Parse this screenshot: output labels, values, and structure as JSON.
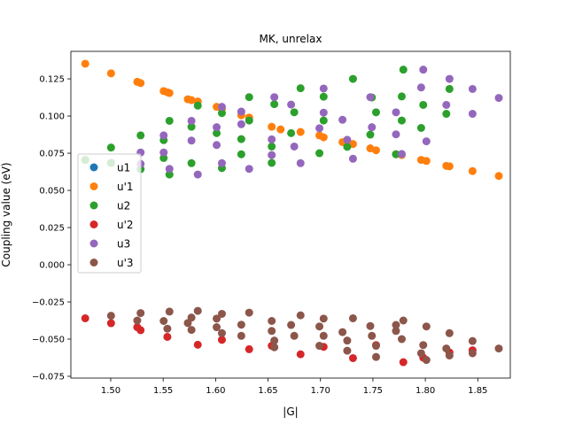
{
  "chart_data": {
    "type": "scatter",
    "title": "MK, unrelax",
    "xlabel": "|G|",
    "ylabel": "Coupling value (eV)",
    "xlim": [
      1.462,
      1.881
    ],
    "ylim": [
      -0.0762,
      0.1435
    ],
    "x_ticks": [
      "1.50",
      "1.55",
      "1.60",
      "1.65",
      "1.70",
      "1.75",
      "1.80",
      "1.85"
    ],
    "x_tick_values": [
      1.5,
      1.55,
      1.6,
      1.65,
      1.7,
      1.75,
      1.8,
      1.85
    ],
    "y_ticks": [
      "−0.075",
      "−0.050",
      "−0.025",
      "0.000",
      "0.025",
      "0.050",
      "0.075",
      "0.100",
      "0.125"
    ],
    "y_tick_values": [
      -0.075,
      -0.05,
      -0.025,
      0.0,
      0.025,
      0.05,
      0.075,
      0.1,
      0.125
    ],
    "grid": false,
    "legend_position": "center-left",
    "series": [
      {
        "name": "u1",
        "color": "#1f77b4",
        "points": [
          [
            1.4757,
            0.0705
          ],
          [
            1.5003,
            0.0685
          ]
        ]
      },
      {
        "name": "u'1",
        "color": "#ff7f0e",
        "points": [
          [
            1.4757,
            0.1352
          ],
          [
            1.5003,
            0.1287
          ],
          [
            1.5253,
            0.123
          ],
          [
            1.5285,
            0.1222
          ],
          [
            1.5505,
            0.1168
          ],
          [
            1.554,
            0.116
          ],
          [
            1.556,
            0.1155
          ],
          [
            1.5735,
            0.1113
          ],
          [
            1.577,
            0.1107
          ],
          [
            1.583,
            0.1098
          ],
          [
            1.601,
            0.1062
          ],
          [
            1.606,
            0.1048
          ],
          [
            1.6245,
            0.1005
          ],
          [
            1.632,
            0.099
          ],
          [
            1.6535,
            0.0928
          ],
          [
            1.662,
            0.091
          ],
          [
            1.681,
            0.0893
          ],
          [
            1.699,
            0.087
          ],
          [
            1.703,
            0.0857
          ],
          [
            1.721,
            0.0825
          ],
          [
            1.7255,
            0.0818
          ],
          [
            1.731,
            0.0812
          ],
          [
            1.7475,
            0.0783
          ],
          [
            1.753,
            0.077
          ],
          [
            1.772,
            0.0743
          ],
          [
            1.7775,
            0.0738
          ],
          [
            1.796,
            0.0705
          ],
          [
            1.801,
            0.0698
          ],
          [
            1.82,
            0.0665
          ],
          [
            1.823,
            0.0662
          ],
          [
            1.845,
            0.063
          ],
          [
            1.87,
            0.0597
          ]
        ]
      },
      {
        "name": "u2",
        "color": "#2ca02c",
        "points": [
          [
            1.4757,
            0.0705
          ],
          [
            1.5003,
            0.0788
          ],
          [
            1.5003,
            0.0685
          ],
          [
            1.5285,
            0.087
          ],
          [
            1.5285,
            0.0643
          ],
          [
            1.5505,
            0.0838
          ],
          [
            1.5505,
            0.0718
          ],
          [
            1.556,
            0.0968
          ],
          [
            1.556,
            0.0607
          ],
          [
            1.577,
            0.0928
          ],
          [
            1.577,
            0.0683
          ],
          [
            1.583,
            0.107
          ],
          [
            1.601,
            0.0885
          ],
          [
            1.606,
            0.102
          ],
          [
            1.606,
            0.065
          ],
          [
            1.6245,
            0.0845
          ],
          [
            1.6245,
            0.0743
          ],
          [
            1.632,
            0.1127
          ],
          [
            1.632,
            0.097
          ],
          [
            1.6535,
            0.0795
          ],
          [
            1.6535,
            0.0685
          ],
          [
            1.656,
            0.108
          ],
          [
            1.672,
            0.0885
          ],
          [
            1.675,
            0.1025
          ],
          [
            1.681,
            0.1187
          ],
          [
            1.699,
            0.075
          ],
          [
            1.703,
            0.097
          ],
          [
            1.703,
            0.113
          ],
          [
            1.7255,
            0.0793
          ],
          [
            1.731,
            0.125
          ],
          [
            1.7475,
            0.0875
          ],
          [
            1.749,
            0.1125
          ],
          [
            1.753,
            0.1025
          ],
          [
            1.772,
            0.0743
          ],
          [
            1.7775,
            0.097
          ],
          [
            1.7775,
            0.1132
          ],
          [
            1.779,
            0.1312
          ],
          [
            1.796,
            0.092
          ],
          [
            1.798,
            0.1075
          ],
          [
            1.82,
            0.1015
          ],
          [
            1.823,
            0.1182
          ]
        ]
      },
      {
        "name": "u'2",
        "color": "#d62728",
        "points": [
          [
            1.4757,
            -0.036
          ],
          [
            1.5003,
            -0.0393
          ],
          [
            1.5253,
            -0.042
          ],
          [
            1.5285,
            -0.044
          ],
          [
            1.554,
            -0.0485
          ],
          [
            1.583,
            -0.0538
          ],
          [
            1.606,
            -0.0505
          ],
          [
            1.632,
            -0.0568
          ],
          [
            1.6535,
            -0.0545
          ],
          [
            1.681,
            -0.0602
          ],
          [
            1.703,
            -0.0552
          ],
          [
            1.731,
            -0.0628
          ],
          [
            1.753,
            -0.054
          ],
          [
            1.779,
            -0.0655
          ],
          [
            1.798,
            -0.0625
          ],
          [
            1.823,
            -0.059
          ],
          [
            1.845,
            -0.0575
          ]
        ]
      },
      {
        "name": "u3",
        "color": "#9467bd",
        "points": [
          [
            1.5505,
            0.087
          ],
          [
            1.5505,
            0.0755
          ],
          [
            1.5285,
            0.0755
          ],
          [
            1.5285,
            0.0678
          ],
          [
            1.556,
            0.0645
          ],
          [
            1.577,
            0.0968
          ],
          [
            1.577,
            0.0835
          ],
          [
            1.583,
            0.0607
          ],
          [
            1.601,
            0.0925
          ],
          [
            1.601,
            0.0805
          ],
          [
            1.606,
            0.1062
          ],
          [
            1.606,
            0.0683
          ],
          [
            1.6245,
            0.0945
          ],
          [
            1.6245,
            0.103
          ],
          [
            1.632,
            0.0645
          ],
          [
            1.6535,
            0.0843
          ],
          [
            1.6535,
            0.0738
          ],
          [
            1.656,
            0.1127
          ],
          [
            1.672,
            0.1077
          ],
          [
            1.675,
            0.0795
          ],
          [
            1.681,
            0.0683
          ],
          [
            1.699,
            0.0918
          ],
          [
            1.703,
            0.1185
          ],
          [
            1.703,
            0.1023
          ],
          [
            1.721,
            0.0975
          ],
          [
            1.7255,
            0.084
          ],
          [
            1.731,
            0.0713
          ],
          [
            1.7475,
            0.1127
          ],
          [
            1.749,
            0.0925
          ],
          [
            1.772,
            0.1025
          ],
          [
            1.772,
            0.0877
          ],
          [
            1.7775,
            0.0745
          ],
          [
            1.796,
            0.1192
          ],
          [
            1.798,
            0.1312
          ],
          [
            1.801,
            0.083
          ],
          [
            1.82,
            0.1075
          ],
          [
            1.823,
            0.125
          ],
          [
            1.845,
            0.1182
          ],
          [
            1.845,
            0.1015
          ],
          [
            1.87,
            0.1122
          ]
        ]
      },
      {
        "name": "u'3",
        "color": "#8c564b",
        "points": [
          [
            1.5003,
            -0.0343
          ],
          [
            1.5253,
            -0.0375
          ],
          [
            1.5285,
            -0.0325
          ],
          [
            1.5505,
            -0.0378
          ],
          [
            1.554,
            -0.043
          ],
          [
            1.556,
            -0.0315
          ],
          [
            1.5735,
            -0.0392
          ],
          [
            1.577,
            -0.0438
          ],
          [
            1.577,
            -0.0355
          ],
          [
            1.583,
            -0.031
          ],
          [
            1.601,
            -0.0362
          ],
          [
            1.601,
            -0.042
          ],
          [
            1.606,
            -0.046
          ],
          [
            1.606,
            -0.033
          ],
          [
            1.6245,
            -0.0403
          ],
          [
            1.6245,
            -0.0478
          ],
          [
            1.632,
            -0.0322
          ],
          [
            1.6535,
            -0.0378
          ],
          [
            1.6535,
            -0.0445
          ],
          [
            1.656,
            -0.051
          ],
          [
            1.656,
            -0.0555
          ],
          [
            1.672,
            -0.0405
          ],
          [
            1.675,
            -0.0478
          ],
          [
            1.681,
            -0.034
          ],
          [
            1.699,
            -0.0545
          ],
          [
            1.699,
            -0.0415
          ],
          [
            1.703,
            -0.0478
          ],
          [
            1.703,
            -0.0362
          ],
          [
            1.721,
            -0.0453
          ],
          [
            1.7255,
            -0.051
          ],
          [
            1.7255,
            -0.0578
          ],
          [
            1.731,
            -0.036
          ],
          [
            1.7475,
            -0.0412
          ],
          [
            1.749,
            -0.0478
          ],
          [
            1.753,
            -0.0545
          ],
          [
            1.753,
            -0.062
          ],
          [
            1.772,
            -0.0405
          ],
          [
            1.772,
            -0.0445
          ],
          [
            1.7775,
            -0.05
          ],
          [
            1.779,
            -0.0375
          ],
          [
            1.796,
            -0.0595
          ],
          [
            1.798,
            -0.054
          ],
          [
            1.801,
            -0.064
          ],
          [
            1.801,
            -0.0415
          ],
          [
            1.82,
            -0.0563
          ],
          [
            1.823,
            -0.046
          ],
          [
            1.823,
            -0.061
          ],
          [
            1.845,
            -0.0513
          ],
          [
            1.845,
            -0.0595
          ],
          [
            1.87,
            -0.0563
          ]
        ]
      }
    ]
  }
}
